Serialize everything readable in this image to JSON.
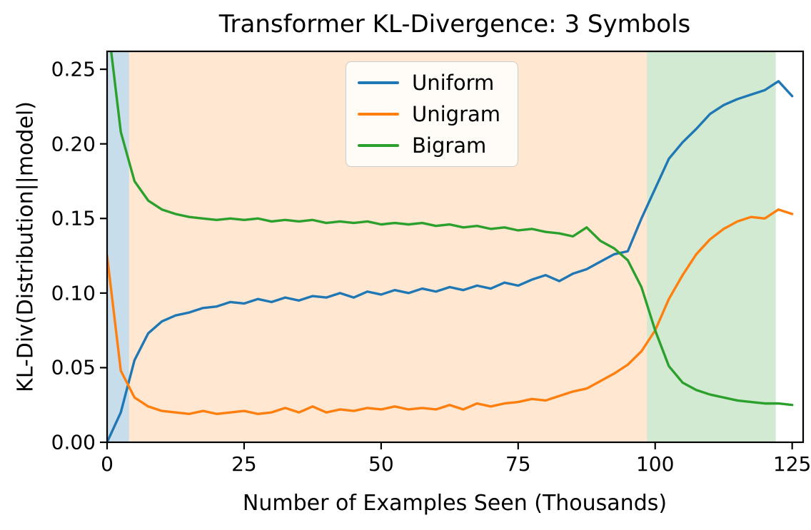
{
  "chart_data": {
    "type": "line",
    "title": "Transformer KL-Divergence: 3 Symbols",
    "xlabel": "Number of Examples Seen (Thousands)",
    "ylabel": "KL-Div(Distribution||model)",
    "xlim": [
      0,
      127
    ],
    "ylim": [
      0,
      0.262
    ],
    "grid": false,
    "legend_position": "upper center",
    "xticks": [
      0,
      25,
      50,
      75,
      100,
      125
    ],
    "xtick_labels": [
      "0",
      "25",
      "50",
      "75",
      "100",
      "125"
    ],
    "yticks": [
      0.0,
      0.05,
      0.1,
      0.15,
      0.2,
      0.25
    ],
    "ytick_labels": [
      "0.00",
      "0.05",
      "0.10",
      "0.15",
      "0.20",
      "0.25"
    ],
    "x": [
      0,
      2.5,
      5,
      7.5,
      10,
      12.5,
      15,
      17.5,
      20,
      22.5,
      25,
      27.5,
      30,
      32.5,
      35,
      37.5,
      40,
      42.5,
      45,
      47.5,
      50,
      52.5,
      55,
      57.5,
      60,
      62.5,
      65,
      67.5,
      70,
      72.5,
      75,
      77.5,
      80,
      82.5,
      85,
      87.5,
      90,
      92.5,
      95,
      97.5,
      100,
      102.5,
      105,
      107.5,
      110,
      112.5,
      115,
      117.5,
      120,
      122.5,
      125
    ],
    "series": [
      {
        "name": "Uniform",
        "color": "#1f77b4",
        "values": [
          0.0,
          0.02,
          0.055,
          0.073,
          0.081,
          0.085,
          0.087,
          0.09,
          0.091,
          0.094,
          0.093,
          0.096,
          0.094,
          0.097,
          0.095,
          0.098,
          0.097,
          0.1,
          0.097,
          0.101,
          0.099,
          0.102,
          0.1,
          0.103,
          0.101,
          0.104,
          0.102,
          0.105,
          0.103,
          0.107,
          0.105,
          0.109,
          0.112,
          0.108,
          0.113,
          0.116,
          0.121,
          0.126,
          0.128,
          0.15,
          0.17,
          0.19,
          0.201,
          0.21,
          0.22,
          0.226,
          0.23,
          0.233,
          0.236,
          0.242,
          0.232
        ]
      },
      {
        "name": "Unigram",
        "color": "#ff7f0e",
        "values": [
          0.125,
          0.048,
          0.03,
          0.024,
          0.021,
          0.02,
          0.019,
          0.021,
          0.019,
          0.02,
          0.021,
          0.019,
          0.02,
          0.023,
          0.02,
          0.024,
          0.02,
          0.022,
          0.021,
          0.023,
          0.022,
          0.024,
          0.022,
          0.023,
          0.022,
          0.025,
          0.022,
          0.026,
          0.024,
          0.026,
          0.027,
          0.029,
          0.028,
          0.031,
          0.034,
          0.036,
          0.041,
          0.046,
          0.052,
          0.061,
          0.075,
          0.096,
          0.112,
          0.126,
          0.136,
          0.143,
          0.148,
          0.151,
          0.15,
          0.156,
          0.153
        ]
      },
      {
        "name": "Bigram",
        "color": "#2ca02c",
        "values": [
          0.285,
          0.208,
          0.175,
          0.162,
          0.156,
          0.153,
          0.151,
          0.15,
          0.149,
          0.15,
          0.149,
          0.15,
          0.148,
          0.149,
          0.148,
          0.149,
          0.147,
          0.148,
          0.147,
          0.148,
          0.146,
          0.147,
          0.146,
          0.147,
          0.145,
          0.146,
          0.144,
          0.145,
          0.143,
          0.144,
          0.142,
          0.143,
          0.141,
          0.14,
          0.138,
          0.144,
          0.135,
          0.13,
          0.122,
          0.104,
          0.075,
          0.051,
          0.04,
          0.035,
          0.032,
          0.03,
          0.028,
          0.027,
          0.026,
          0.026,
          0.025
        ]
      }
    ],
    "regions": [
      {
        "name": "uniform-best-region",
        "x0": 0,
        "x1": 4,
        "color": "rgba(31,119,180,0.25)"
      },
      {
        "name": "unigram-best-region",
        "x0": 4,
        "x1": 98.5,
        "color": "rgba(255,127,14,0.19)"
      },
      {
        "name": "bigram-best-region",
        "x0": 98.5,
        "x1": 122,
        "color": "rgba(44,160,44,0.22)"
      }
    ]
  }
}
